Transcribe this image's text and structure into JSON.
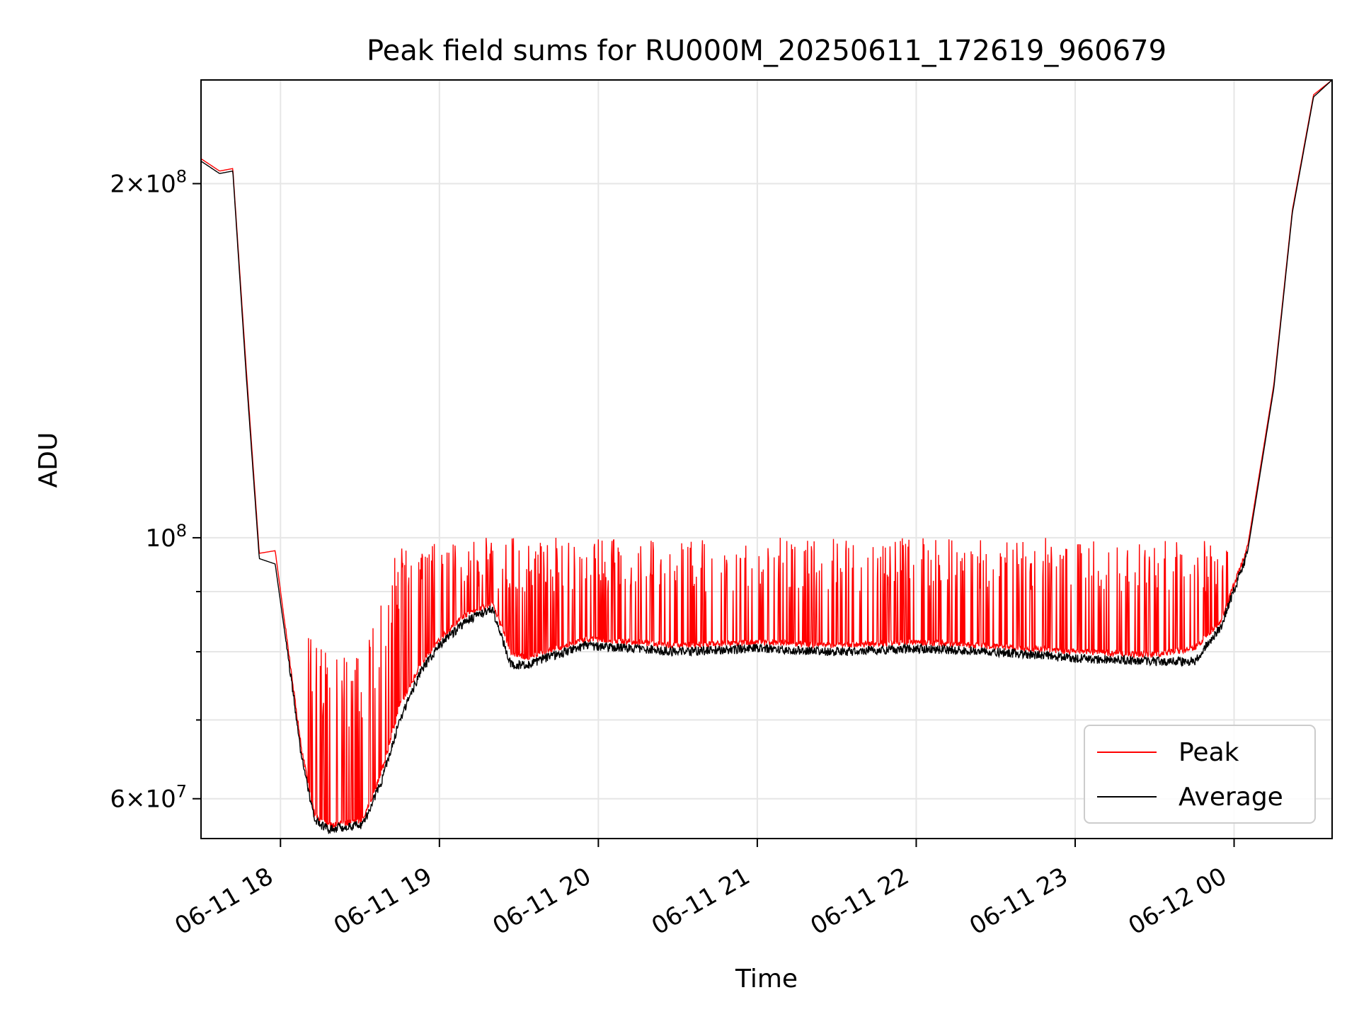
{
  "chart_data": {
    "type": "line",
    "title": "Peak field sums for RU000M_20250611_172619_960679",
    "xlabel": "Time",
    "ylabel": "ADU",
    "y_scale": "log",
    "xlim": [
      "2025-06-11 17:30",
      "2025-06-12 00:37"
    ],
    "ylim": [
      55500000,
      245000000
    ],
    "grid": true,
    "legend_position": "lower-right",
    "x_ticks": [
      {
        "t": "2025-06-11 18:00",
        "label": "06-11 18"
      },
      {
        "t": "2025-06-11 19:00",
        "label": "06-11 19"
      },
      {
        "t": "2025-06-11 20:00",
        "label": "06-11 20"
      },
      {
        "t": "2025-06-11 21:00",
        "label": "06-11 21"
      },
      {
        "t": "2025-06-11 22:00",
        "label": "06-11 22"
      },
      {
        "t": "2025-06-11 23:00",
        "label": "06-11 23"
      },
      {
        "t": "2025-06-12 00:00",
        "label": "06-12 00"
      }
    ],
    "y_major_ticks": [
      {
        "value": 60000000,
        "base": "6×10",
        "exp": "7"
      },
      {
        "value": 100000000,
        "base": "10",
        "exp": "8"
      },
      {
        "value": 200000000,
        "base": "2×10",
        "exp": "8"
      }
    ],
    "y_minor_ticks": [
      70000000,
      80000000,
      90000000
    ],
    "series": [
      {
        "name": "Peak",
        "color": "#ff0000",
        "style": "baseline with frequent upward spikes",
        "x": [
          "2025-06-11 17:30",
          "2025-06-11 17:37",
          "2025-06-11 17:42",
          "2025-06-11 17:47",
          "2025-06-11 17:52",
          "2025-06-11 17:58",
          "2025-06-11 18:04",
          "2025-06-11 18:08",
          "2025-06-11 18:13",
          "2025-06-11 18:18",
          "2025-06-11 18:24",
          "2025-06-11 18:31",
          "2025-06-11 18:38",
          "2025-06-11 18:45",
          "2025-06-11 18:53",
          "2025-06-11 19:00",
          "2025-06-11 19:10",
          "2025-06-11 19:20",
          "2025-06-11 19:27",
          "2025-06-11 19:33",
          "2025-06-11 19:40",
          "2025-06-11 19:55",
          "2025-06-11 20:30",
          "2025-06-11 21:00",
          "2025-06-11 21:30",
          "2025-06-11 22:00",
          "2025-06-11 22:30",
          "2025-06-11 23:00",
          "2025-06-11 23:30",
          "2025-06-11 23:45",
          "2025-06-11 23:55",
          "2025-06-12 00:05",
          "2025-06-12 00:15",
          "2025-06-12 00:22",
          "2025-06-12 00:30",
          "2025-06-12 00:37"
        ],
        "y": [
          210000000,
          205000000,
          206000000,
          140000000,
          97000000,
          97500000,
          77000000,
          66000000,
          58000000,
          57000000,
          57200000,
          57500000,
          63000000,
          72000000,
          78000000,
          82000000,
          86000000,
          88000000,
          80000000,
          79000000,
          80000000,
          82000000,
          81000000,
          81500000,
          81000000,
          81500000,
          80800000,
          80000000,
          79500000,
          80500000,
          85000000,
          98000000,
          135000000,
          190000000,
          238000000,
          245000000
        ],
        "spike_peak_range": [
          90000000,
          100000000
        ]
      },
      {
        "name": "Average",
        "color": "#000000",
        "x": [
          "2025-06-11 17:30",
          "2025-06-11 17:37",
          "2025-06-11 17:42",
          "2025-06-11 17:47",
          "2025-06-11 17:52",
          "2025-06-11 17:58",
          "2025-06-11 18:04",
          "2025-06-11 18:08",
          "2025-06-11 18:13",
          "2025-06-11 18:18",
          "2025-06-11 18:24",
          "2025-06-11 18:31",
          "2025-06-11 18:38",
          "2025-06-11 18:45",
          "2025-06-11 18:53",
          "2025-06-11 19:00",
          "2025-06-11 19:10",
          "2025-06-11 19:20",
          "2025-06-11 19:27",
          "2025-06-11 19:33",
          "2025-06-11 19:40",
          "2025-06-11 19:55",
          "2025-06-11 20:30",
          "2025-06-11 21:00",
          "2025-06-11 21:30",
          "2025-06-11 22:00",
          "2025-06-11 22:30",
          "2025-06-11 23:00",
          "2025-06-11 23:30",
          "2025-06-11 23:45",
          "2025-06-11 23:55",
          "2025-06-12 00:05",
          "2025-06-12 00:15",
          "2025-06-12 00:22",
          "2025-06-12 00:30",
          "2025-06-12 00:37"
        ],
        "y": [
          209000000,
          204000000,
          205000000,
          138000000,
          96000000,
          95000000,
          76000000,
          65000000,
          57500000,
          56500000,
          56800000,
          57000000,
          62000000,
          70000000,
          77000000,
          81000000,
          85000000,
          87000000,
          78000000,
          78000000,
          79000000,
          81000000,
          80000000,
          80500000,
          80000000,
          80500000,
          80000000,
          79000000,
          78500000,
          78500000,
          84000000,
          97000000,
          134000000,
          189000000,
          237000000,
          245000000
        ]
      }
    ]
  }
}
